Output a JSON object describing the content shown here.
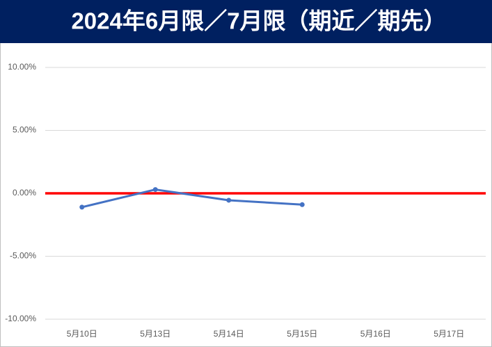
{
  "chart_data": {
    "type": "line",
    "title": "2024年6月限／7月限（期近／期先）",
    "categories": [
      "5月10日",
      "5月13日",
      "5月14日",
      "5月15日",
      "5月16日",
      "5月17日"
    ],
    "series": [
      {
        "name": "期近／期先",
        "color": "#4472c4",
        "values": [
          -1.1,
          0.3,
          -0.55,
          -0.9,
          null,
          null
        ]
      }
    ],
    "ylim": [
      -10,
      10
    ],
    "yticks": [
      {
        "value": -10,
        "label": "-10.00%"
      },
      {
        "value": -5,
        "label": "-5.00%"
      },
      {
        "value": 0,
        "label": "0.00%"
      },
      {
        "value": 5,
        "label": "5.00%"
      },
      {
        "value": 10,
        "label": "10.00%"
      }
    ],
    "grid": true,
    "zero_line_color": "#ff0000"
  }
}
